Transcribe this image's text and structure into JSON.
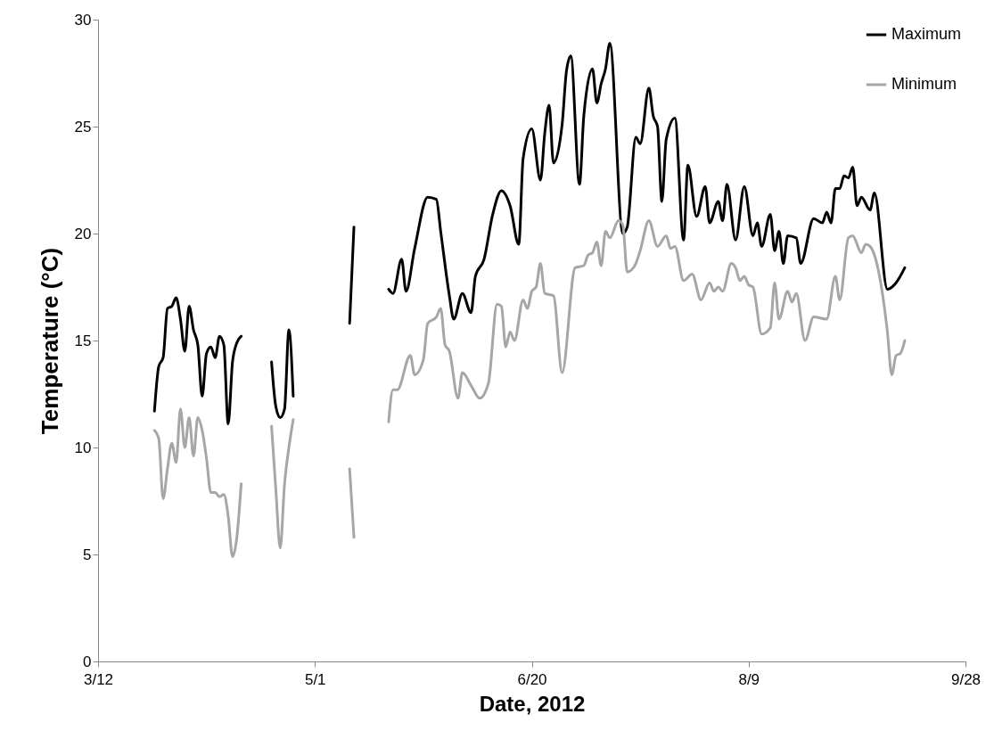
{
  "chart_data": {
    "type": "line",
    "xlabel": "Date, 2012",
    "ylabel": "Temperature (°C)",
    "xlim": [
      "2012-03-12",
      "2012-09-28"
    ],
    "xticks": [
      {
        "value": "2012-03-12",
        "label": "3/12"
      },
      {
        "value": "2012-05-01",
        "label": "5/1"
      },
      {
        "value": "2012-06-20",
        "label": "6/20"
      },
      {
        "value": "2012-08-09",
        "label": "8/9"
      },
      {
        "value": "2012-09-28",
        "label": "9/28"
      }
    ],
    "ylim": [
      0,
      30
    ],
    "yticks": [
      0,
      5,
      10,
      15,
      20,
      25,
      30
    ],
    "grid": false,
    "legend": "top right",
    "line_style": "solid",
    "series": [
      {
        "name": "Maximum",
        "color": "#000000",
        "x": [
          "2012-03-25",
          "2012-03-26",
          "2012-03-27",
          "2012-03-28",
          "2012-03-29",
          "2012-03-30",
          "2012-03-31",
          "2012-04-01",
          "2012-04-02",
          "2012-04-03",
          "2012-04-04",
          "2012-04-05",
          "2012-04-06",
          "2012-04-07",
          "2012-04-08",
          "2012-04-09",
          "2012-04-10",
          "2012-04-11",
          "2012-04-12",
          "2012-04-13",
          "2012-04-14",
          "2012-04-17",
          "2012-04-21",
          "2012-04-22",
          "2012-04-23",
          "2012-04-24",
          "2012-04-25",
          "2012-04-26",
          "2012-05-04",
          "2012-05-09",
          "2012-05-10",
          "2012-05-14",
          "2012-05-18",
          "2012-05-19",
          "2012-05-21",
          "2012-05-22",
          "2012-05-24",
          "2012-05-27",
          "2012-05-29",
          "2012-05-30",
          "2012-06-01",
          "2012-06-02",
          "2012-06-04",
          "2012-06-06",
          "2012-06-07",
          "2012-06-09",
          "2012-06-11",
          "2012-06-13",
          "2012-06-15",
          "2012-06-17",
          "2012-06-18",
          "2012-06-20",
          "2012-06-22",
          "2012-06-23",
          "2012-06-24",
          "2012-06-25",
          "2012-06-27",
          "2012-06-28",
          "2012-06-29",
          "2012-07-01",
          "2012-07-02",
          "2012-07-04",
          "2012-07-05",
          "2012-07-06",
          "2012-07-07",
          "2012-07-08",
          "2012-07-11",
          "2012-07-12",
          "2012-07-14",
          "2012-07-15",
          "2012-07-17",
          "2012-07-18",
          "2012-07-19",
          "2012-07-20",
          "2012-07-21",
          "2012-07-23",
          "2012-07-25",
          "2012-07-26",
          "2012-07-28",
          "2012-07-30",
          "2012-07-31",
          "2012-08-02",
          "2012-08-03",
          "2012-08-04",
          "2012-08-06",
          "2012-08-08",
          "2012-08-10",
          "2012-08-11",
          "2012-08-12",
          "2012-08-14",
          "2012-08-15",
          "2012-08-16",
          "2012-08-17",
          "2012-08-18",
          "2012-08-20",
          "2012-08-21",
          "2012-08-24",
          "2012-08-26",
          "2012-08-27",
          "2012-08-28",
          "2012-08-29",
          "2012-08-30",
          "2012-08-31",
          "2012-09-01",
          "2012-09-02",
          "2012-09-03",
          "2012-09-04",
          "2012-09-06",
          "2012-09-07",
          "2012-09-10",
          "2012-09-12",
          "2012-09-14"
        ],
        "values": [
          11.7,
          13.8,
          14.2,
          16.5,
          16.6,
          17.0,
          16.0,
          14.5,
          16.6,
          15.5,
          14.8,
          12.4,
          14.4,
          14.7,
          14.2,
          15.2,
          14.8,
          11.1,
          14.0,
          14.9,
          15.2,
          null,
          14.0,
          11.9,
          11.4,
          11.8,
          15.5,
          12.4,
          null,
          15.8,
          20.3,
          null,
          17.4,
          17.2,
          18.8,
          17.3,
          19.3,
          21.7,
          21.6,
          20.1,
          17.1,
          16.0,
          17.2,
          16.3,
          18.0,
          18.8,
          20.9,
          22.0,
          21.3,
          19.5,
          23.5,
          24.9,
          22.5,
          24.7,
          26.0,
          23.3,
          25.1,
          27.6,
          28.3,
          22.3,
          25.5,
          27.7,
          26.1,
          27.0,
          27.7,
          28.9,
          20.0,
          20.3,
          24.5,
          24.2,
          26.8,
          25.5,
          25.0,
          21.5,
          24.4,
          25.4,
          19.7,
          23.2,
          20.8,
          22.2,
          20.5,
          21.5,
          20.6,
          22.3,
          19.7,
          22.2,
          19.9,
          20.5,
          19.4,
          20.9,
          19.2,
          20.1,
          18.6,
          19.9,
          19.8,
          18.6,
          20.7,
          20.5,
          21.0,
          20.5,
          22.1,
          22.1,
          22.7,
          22.6,
          23.1,
          21.3,
          21.7,
          21.1,
          21.9,
          17.4,
          17.7,
          18.4
        ]
      },
      {
        "name": "Minimum",
        "color": "#a6a6a6",
        "x": [
          "2012-03-25",
          "2012-03-26",
          "2012-03-27",
          "2012-03-28",
          "2012-03-29",
          "2012-03-30",
          "2012-03-31",
          "2012-04-01",
          "2012-04-02",
          "2012-04-03",
          "2012-04-04",
          "2012-04-05",
          "2012-04-06",
          "2012-04-07",
          "2012-04-08",
          "2012-04-09",
          "2012-04-10",
          "2012-04-11",
          "2012-04-12",
          "2012-04-13",
          "2012-04-14",
          "2012-04-17",
          "2012-04-21",
          "2012-04-22",
          "2012-04-23",
          "2012-04-24",
          "2012-04-25",
          "2012-04-26",
          "2012-05-04",
          "2012-05-09",
          "2012-05-10",
          "2012-05-14",
          "2012-05-18",
          "2012-05-19",
          "2012-05-20",
          "2012-05-23",
          "2012-05-24",
          "2012-05-26",
          "2012-05-27",
          "2012-05-29",
          "2012-05-30",
          "2012-05-31",
          "2012-06-01",
          "2012-06-03",
          "2012-06-04",
          "2012-06-06",
          "2012-06-08",
          "2012-06-10",
          "2012-06-12",
          "2012-06-13",
          "2012-06-14",
          "2012-06-15",
          "2012-06-16",
          "2012-06-18",
          "2012-06-19",
          "2012-06-20",
          "2012-06-21",
          "2012-06-22",
          "2012-06-23",
          "2012-06-25",
          "2012-06-27",
          "2012-06-30",
          "2012-07-02",
          "2012-07-03",
          "2012-07-04",
          "2012-07-05",
          "2012-07-06",
          "2012-07-07",
          "2012-07-08",
          "2012-07-10",
          "2012-07-11",
          "2012-07-12",
          "2012-07-13",
          "2012-07-14",
          "2012-07-15",
          "2012-07-17",
          "2012-07-19",
          "2012-07-21",
          "2012-07-22",
          "2012-07-23",
          "2012-07-25",
          "2012-07-27",
          "2012-07-29",
          "2012-07-31",
          "2012-08-01",
          "2012-08-02",
          "2012-08-03",
          "2012-08-05",
          "2012-08-06",
          "2012-08-07",
          "2012-08-08",
          "2012-08-09",
          "2012-08-10",
          "2012-08-12",
          "2012-08-14",
          "2012-08-15",
          "2012-08-16",
          "2012-08-18",
          "2012-08-19",
          "2012-08-20",
          "2012-08-22",
          "2012-08-24",
          "2012-08-27",
          "2012-08-29",
          "2012-08-30",
          "2012-09-01",
          "2012-09-02",
          "2012-09-04",
          "2012-09-05",
          "2012-09-06",
          "2012-09-08",
          "2012-09-10",
          "2012-09-11",
          "2012-09-12",
          "2012-09-13",
          "2012-09-14"
        ],
        "values": [
          10.8,
          10.4,
          7.6,
          9.0,
          10.2,
          9.3,
          11.8,
          10.0,
          11.4,
          9.6,
          11.4,
          10.8,
          9.5,
          7.9,
          7.9,
          7.7,
          7.8,
          6.8,
          4.9,
          5.8,
          8.3,
          null,
          11.0,
          8.0,
          5.3,
          8.3,
          10.0,
          11.3,
          null,
          9.0,
          5.8,
          null,
          11.2,
          12.7,
          12.7,
          14.3,
          13.4,
          14.1,
          15.8,
          16.1,
          16.5,
          14.8,
          14.5,
          12.3,
          13.5,
          12.9,
          12.3,
          13.0,
          16.7,
          16.6,
          14.7,
          15.4,
          15.0,
          16.9,
          16.5,
          17.3,
          17.5,
          18.6,
          17.2,
          17.1,
          13.5,
          18.4,
          18.5,
          19.0,
          19.1,
          19.6,
          18.5,
          20.1,
          19.8,
          20.6,
          20.4,
          18.2,
          18.3,
          18.6,
          19.2,
          20.6,
          19.4,
          19.9,
          19.3,
          19.4,
          17.8,
          18.1,
          16.9,
          17.7,
          17.3,
          17.5,
          17.3,
          18.6,
          18.4,
          17.8,
          18.0,
          17.6,
          17.5,
          15.3,
          15.6,
          17.7,
          16.0,
          17.3,
          16.8,
          17.2,
          15.0,
          16.1,
          16.0,
          18.0,
          16.9,
          19.8,
          19.9,
          19.1,
          19.5,
          19.4,
          18.2,
          15.4,
          13.4,
          14.3,
          14.4,
          15.0
        ]
      }
    ]
  }
}
